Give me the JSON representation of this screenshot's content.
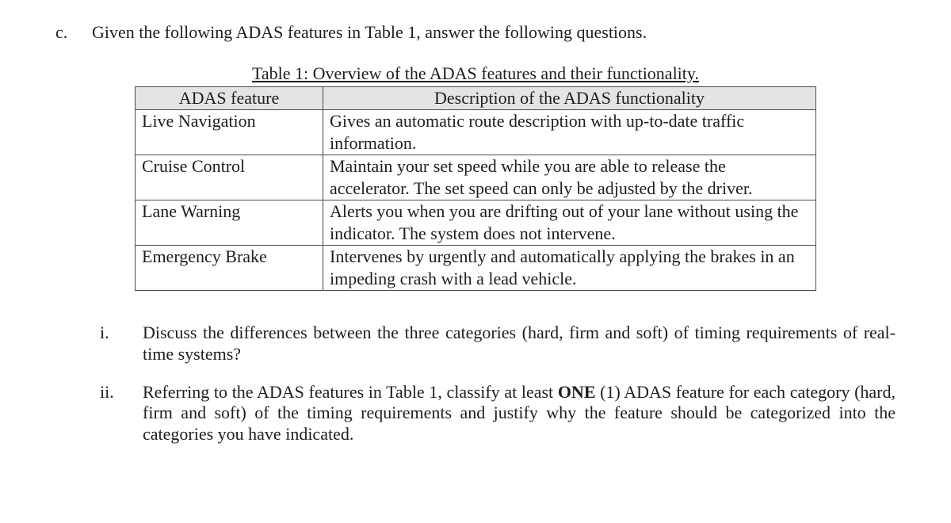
{
  "question": {
    "marker": "c.",
    "text": "Given the following ADAS features in Table 1, answer the following questions."
  },
  "table": {
    "caption": "Table 1: Overview of the ADAS features and their functionality.",
    "columns": [
      "ADAS feature",
      "Description of the ADAS functionality"
    ],
    "rows": [
      [
        "Live Navigation",
        "Gives an automatic route description with up-to-date traffic information."
      ],
      [
        "Cruise Control",
        "Maintain your set speed while you are able to release the accelerator. The set speed can only be adjusted by the driver."
      ],
      [
        "Lane Warning",
        "Alerts you when you are drifting out of your lane without using the indicator. The system does not intervene."
      ],
      [
        "Emergency Brake",
        "Intervenes by urgently and automatically applying the brakes in an impeding crash with a lead vehicle."
      ]
    ]
  },
  "subquestions": [
    {
      "marker": "i.",
      "text": "Discuss the differences between the three categories (hard, firm and soft) of timing requirements of real-time systems?"
    },
    {
      "marker": "ii.",
      "text_before": "Referring to the ADAS features in Table 1, classify at least ",
      "bold": "ONE",
      "text_after": " (1) ADAS feature for each category (hard, firm and soft) of the timing requirements and justify why the feature should be categorized into the categories you have indicated."
    }
  ]
}
